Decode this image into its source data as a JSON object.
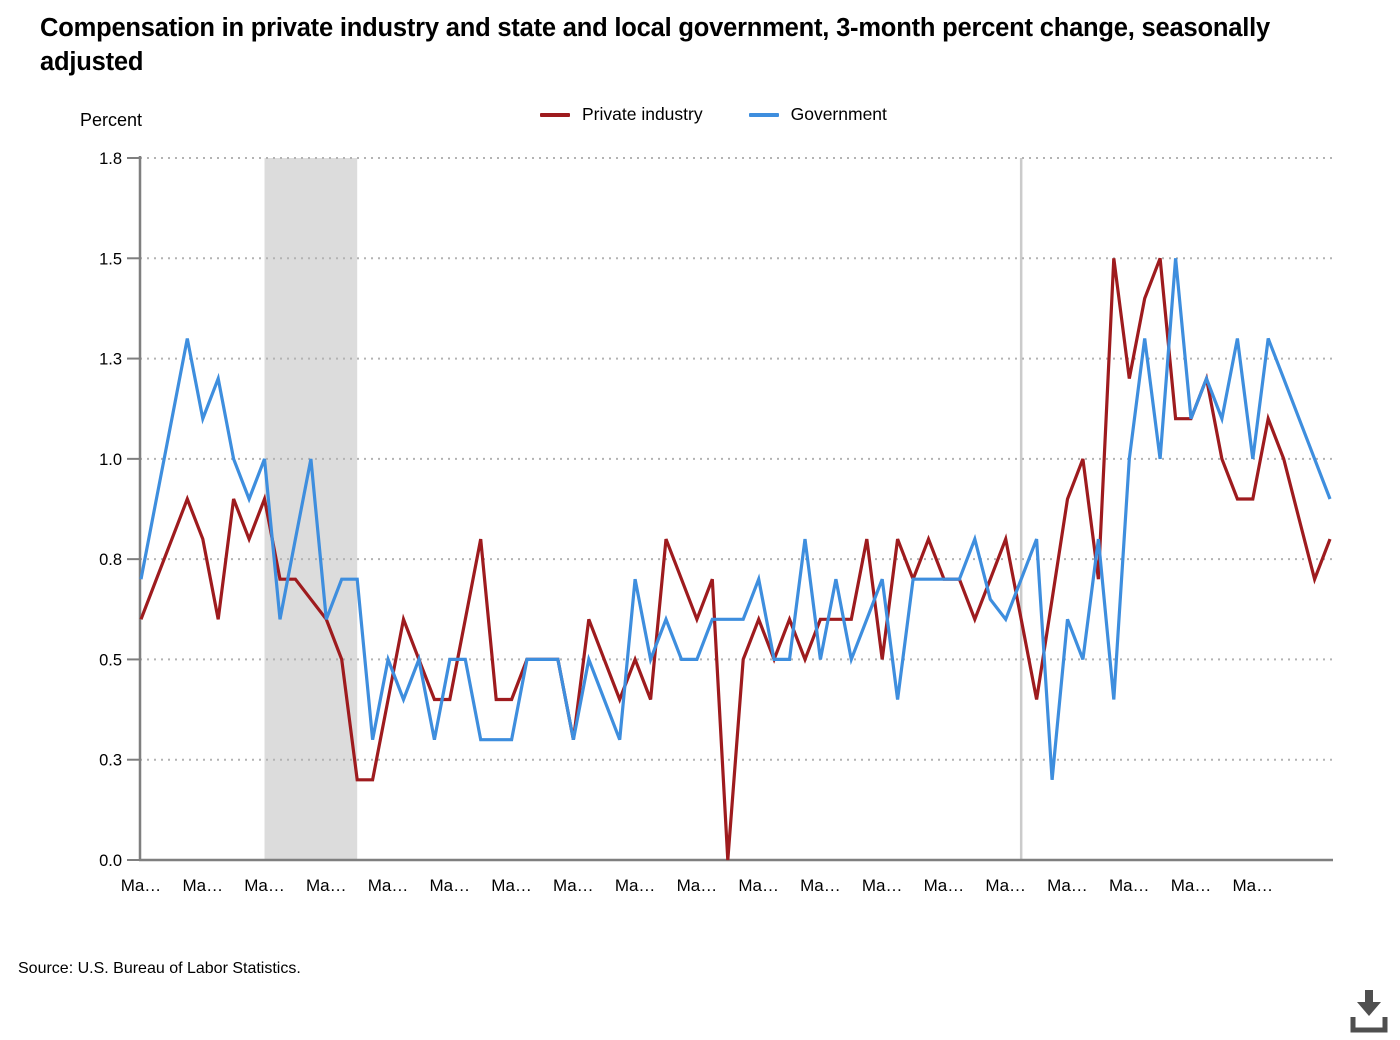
{
  "title": "Compensation in private industry and state and local government, 3-month percent change, seasonally adjusted",
  "y_axis": {
    "label": "Percent",
    "tick_labels": [
      "0.0",
      "0.3",
      "0.5",
      "0.8",
      "1.0",
      "1.3",
      "1.5",
      "1.8"
    ],
    "tick_values": [
      0,
      0.25,
      0.5,
      0.75,
      1.0,
      1.25,
      1.5,
      1.75
    ]
  },
  "x_axis": {
    "labels": [
      "Ma…",
      "Ma…",
      "Ma…",
      "Ma…",
      "Ma…",
      "Ma…",
      "Ma…",
      "Ma…",
      "Ma…",
      "Ma…",
      "Ma…",
      "Ma…",
      "Ma…",
      "Ma…",
      "Ma…",
      "Ma…",
      "Ma…",
      "Ma…",
      "Ma…"
    ],
    "every_nth_point": 4
  },
  "legend": [
    {
      "label": "Private industry",
      "color": "#9E1B1E"
    },
    {
      "label": "Government",
      "color": "#3E8EDE"
    }
  ],
  "footer": {
    "source": "Source: U.S. Bureau of Labor Statistics.",
    "download_icon": "download-icon"
  },
  "chart_data": {
    "type": "line",
    "x_unit": "quarter",
    "ylim": [
      0,
      1.75
    ],
    "y_tick_interval": 0.25,
    "grid": "dotted horizontal",
    "legend_position": "top-center",
    "recession_band": {
      "from_index": 8,
      "to_index": 14
    },
    "event_line_index": 57,
    "colors": {
      "grid": "#B3B3B3",
      "axis": "#7F7F7F",
      "recession_band": "#DCDCDC",
      "event_line": "#CBCBCB",
      "tick_text": "#000000",
      "icon": "#4F4F4F"
    },
    "series": [
      {
        "name": "Private industry",
        "color": "#9E1B1E",
        "values": [
          0.6,
          0.7,
          0.8,
          0.9,
          0.8,
          0.6,
          0.9,
          0.8,
          0.9,
          0.7,
          0.7,
          0.65,
          0.6,
          0.5,
          0.2,
          0.2,
          0.4,
          0.6,
          0.5,
          0.4,
          0.4,
          0.6,
          0.8,
          0.4,
          0.4,
          0.5,
          0.5,
          0.5,
          0.3,
          0.6,
          0.5,
          0.4,
          0.5,
          0.4,
          0.8,
          0.7,
          0.6,
          0.7,
          0.0,
          0.5,
          0.6,
          0.5,
          0.6,
          0.5,
          0.6,
          0.6,
          0.6,
          0.8,
          0.5,
          0.8,
          0.7,
          0.8,
          0.7,
          0.7,
          0.6,
          0.7,
          0.8,
          0.6,
          0.4,
          0.65,
          0.9,
          1.0,
          0.7,
          1.5,
          1.2,
          1.4,
          1.5,
          1.1,
          1.1,
          1.2,
          1.0,
          0.9,
          0.9,
          1.1,
          1.0,
          0.85,
          0.7,
          0.8
        ]
      },
      {
        "name": "Government",
        "color": "#3E8EDE",
        "values": [
          0.7,
          0.9,
          1.1,
          1.3,
          1.1,
          1.2,
          1.0,
          0.9,
          1.0,
          0.6,
          0.8,
          1.0,
          0.6,
          0.7,
          0.7,
          0.3,
          0.5,
          0.4,
          0.5,
          0.3,
          0.5,
          0.5,
          0.3,
          0.3,
          0.3,
          0.5,
          0.5,
          0.5,
          0.3,
          0.5,
          0.4,
          0.3,
          0.7,
          0.5,
          0.6,
          0.5,
          0.5,
          0.6,
          0.6,
          0.6,
          0.7,
          0.5,
          0.5,
          0.8,
          0.5,
          0.7,
          0.5,
          0.6,
          0.7,
          0.4,
          0.7,
          0.7,
          0.7,
          0.7,
          0.8,
          0.65,
          0.6,
          0.7,
          0.8,
          0.2,
          0.6,
          0.5,
          0.8,
          0.4,
          1.0,
          1.3,
          1.0,
          1.5,
          1.1,
          1.2,
          1.1,
          1.3,
          1.0,
          1.3,
          1.2,
          1.1,
          1.0,
          0.9
        ]
      }
    ]
  }
}
